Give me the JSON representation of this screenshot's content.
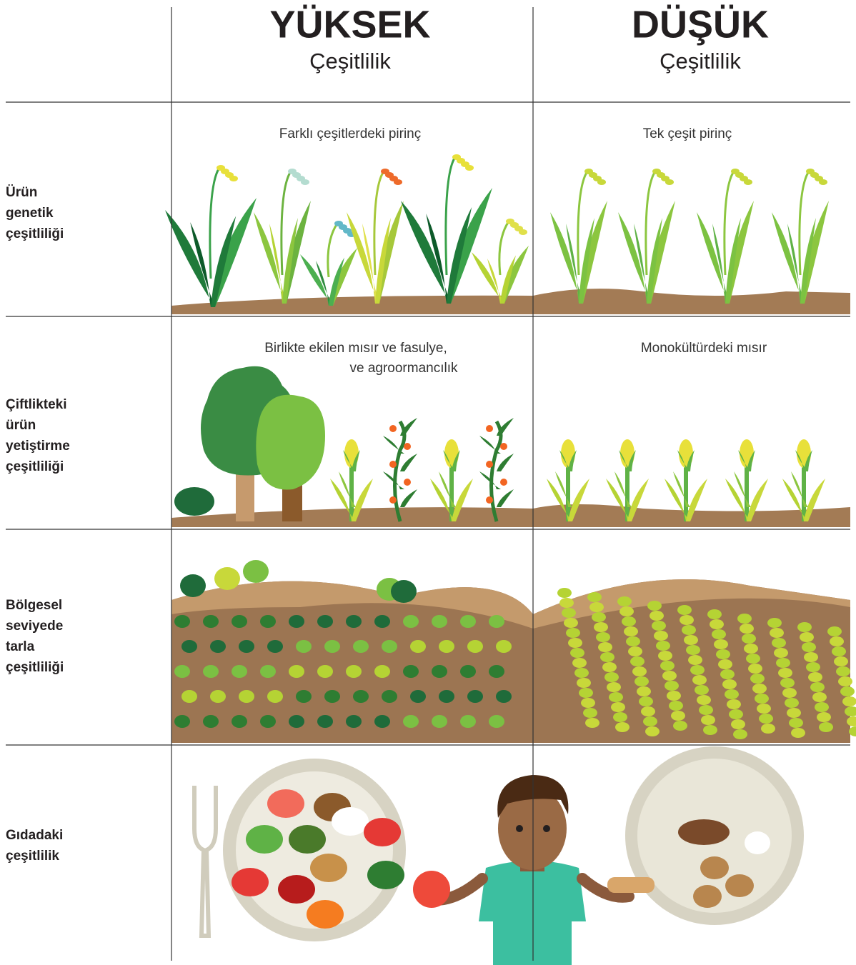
{
  "header": {
    "columns": [
      {
        "title": "YÜKSEK",
        "subtitle": "Çeşitlilik"
      },
      {
        "title": "DÜŞÜK",
        "subtitle": "Çeşitlilik"
      }
    ]
  },
  "rows": [
    {
      "label": [
        "Ürün",
        "genetik",
        "çeşitliliği"
      ],
      "high": [
        "Farklı çeşitlerdeki pirinç"
      ],
      "low": [
        "Tek çeşit pirinç"
      ]
    },
    {
      "label": [
        "Çiftlikteki",
        "ürün",
        "yetiştirme",
        "çeşitliliği"
      ],
      "high": [
        "Birlikte ekilen mısır ve fasulye,",
        "ve agroormancılık"
      ],
      "low": [
        "Monokültürdeki mısır"
      ]
    },
    {
      "label": [
        "Bölgesel",
        "seviyede",
        "tarla",
        "çeşitliliği"
      ]
    },
    {
      "label": [
        "Gıdadaki",
        "çeşitlilik"
      ]
    }
  ]
}
